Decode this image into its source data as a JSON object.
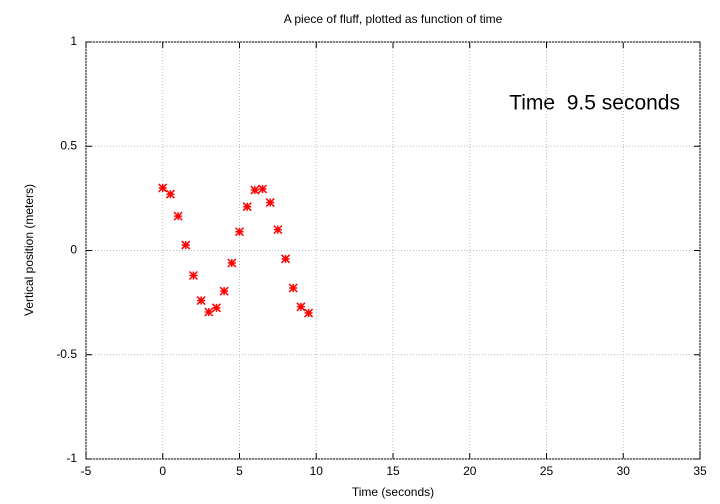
{
  "chart_data": {
    "type": "scatter",
    "title": "A piece of fluff, plotted as function of time",
    "xlabel": "Time (seconds)",
    "ylabel": "Vertical position (meters)",
    "annotation": "Time  9.5 seconds",
    "x": [
      0,
      0.5,
      1,
      1.5,
      2,
      2.5,
      3,
      3.5,
      4,
      4.5,
      5,
      5.5,
      6,
      6.5,
      7,
      7.5,
      8,
      8.5,
      9,
      9.5
    ],
    "values": [
      0.3,
      0.27,
      0.165,
      0.026,
      -0.12,
      -0.24,
      -0.295,
      -0.275,
      -0.195,
      -0.06,
      0.09,
      0.21,
      0.29,
      0.295,
      0.23,
      0.1,
      -0.04,
      -0.18,
      -0.27,
      -0.3
    ],
    "color": "#ff0000",
    "xlim": [
      -5,
      35
    ],
    "xticks": [
      -5,
      0,
      5,
      10,
      15,
      20,
      25,
      30,
      35
    ],
    "ylim": [
      -1,
      1
    ],
    "yticks": [
      -1,
      -0.5,
      0,
      0.5,
      1
    ],
    "grid": true
  }
}
